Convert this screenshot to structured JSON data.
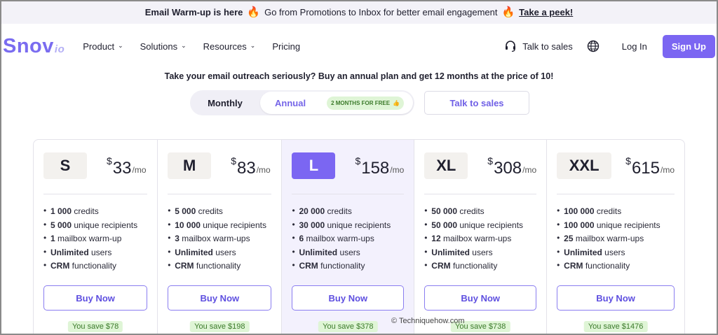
{
  "announcement": {
    "title": "Email Warm-up is here",
    "message": "Go from Promotions to Inbox for better email engagement",
    "link": "Take a peek!"
  },
  "nav": {
    "logo": "Snov",
    "logo_suffix": "io",
    "items": [
      {
        "label": "Product",
        "has_dropdown": true
      },
      {
        "label": "Solutions",
        "has_dropdown": true
      },
      {
        "label": "Resources",
        "has_dropdown": true
      },
      {
        "label": "Pricing",
        "has_dropdown": false
      }
    ],
    "talk_to_sales": "Talk to sales",
    "login": "Log In",
    "signup": "Sign Up"
  },
  "promo": "Take your email outreach seriously? Buy an annual plan and get 12 months at the price of 10!",
  "billing": {
    "monthly": "Monthly",
    "annual": "Annual",
    "badge": "2 MONTHS FOR FREE",
    "talk_button": "Talk to sales"
  },
  "plans": [
    {
      "tier": "S",
      "currency": "$",
      "price": "33",
      "period": "/mo",
      "features": [
        {
          "bold": "1 000",
          "text": " credits"
        },
        {
          "bold": "5 000",
          "text": " unique recipients"
        },
        {
          "bold": "1",
          "text": " mailbox warm-up"
        },
        {
          "bold": "Unlimited",
          "text": " users"
        },
        {
          "bold": "CRM",
          "text": " functionality"
        }
      ],
      "buy": "Buy Now",
      "save": "You save $78"
    },
    {
      "tier": "M",
      "currency": "$",
      "price": "83",
      "period": "/mo",
      "features": [
        {
          "bold": "5 000",
          "text": " credits"
        },
        {
          "bold": "10 000",
          "text": " unique recipients"
        },
        {
          "bold": "3",
          "text": " mailbox warm-ups"
        },
        {
          "bold": "Unlimited",
          "text": " users"
        },
        {
          "bold": "CRM",
          "text": " functionality"
        }
      ],
      "buy": "Buy Now",
      "save": "You save $198"
    },
    {
      "tier": "L",
      "currency": "$",
      "price": "158",
      "period": "/mo",
      "features": [
        {
          "bold": "20 000",
          "text": " credits"
        },
        {
          "bold": "30 000",
          "text": " unique recipients"
        },
        {
          "bold": "6",
          "text": " mailbox warm-ups"
        },
        {
          "bold": "Unlimited",
          "text": " users"
        },
        {
          "bold": "CRM",
          "text": " functionality"
        }
      ],
      "buy": "Buy Now",
      "save": "You save $378"
    },
    {
      "tier": "XL",
      "currency": "$",
      "price": "308",
      "period": "/mo",
      "features": [
        {
          "bold": "50 000",
          "text": " credits"
        },
        {
          "bold": "50 000",
          "text": " unique recipients"
        },
        {
          "bold": "12",
          "text": " mailbox warm-ups"
        },
        {
          "bold": "Unlimited",
          "text": " users"
        },
        {
          "bold": "CRM",
          "text": " functionality"
        }
      ],
      "buy": "Buy Now",
      "save": "You save $738"
    },
    {
      "tier": "XXL",
      "currency": "$",
      "price": "615",
      "period": "/mo",
      "features": [
        {
          "bold": "100 000",
          "text": " credits"
        },
        {
          "bold": "100 000",
          "text": " unique recipients"
        },
        {
          "bold": "25",
          "text": " mailbox warm-ups"
        },
        {
          "bold": "Unlimited",
          "text": " users"
        },
        {
          "bold": "CRM",
          "text": " functionality"
        }
      ],
      "buy": "Buy Now",
      "save": "You save $1476"
    }
  ],
  "watermark": "© Techniquehow.com",
  "colors": {
    "accent": "#7b66f2",
    "save_bg": "#dff5d6",
    "save_text": "#3b7a2a"
  }
}
